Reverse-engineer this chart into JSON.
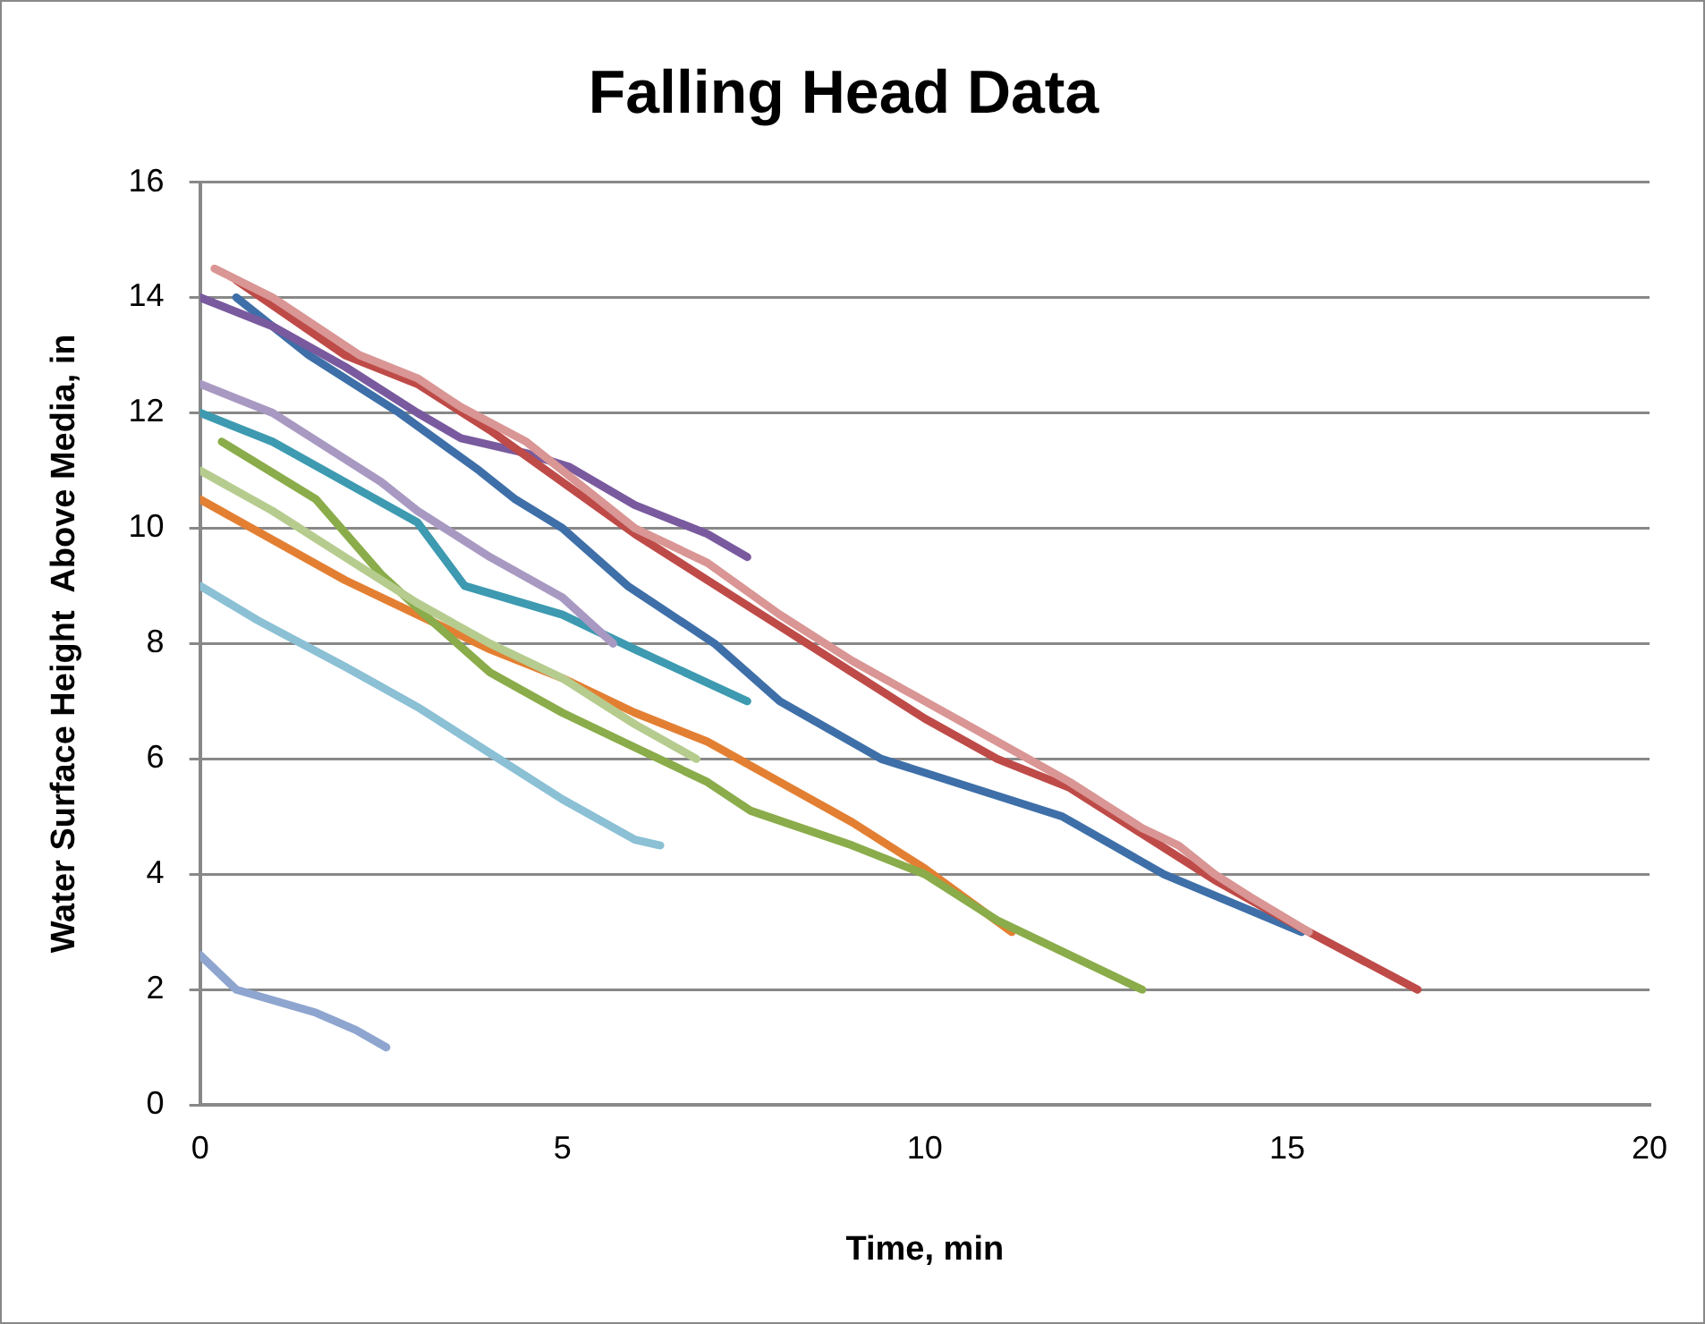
{
  "chart_data": {
    "type": "line",
    "title": "Falling Head Data",
    "xlabel": "Time, min",
    "ylabel": "Water Surface Height  Above Media, in",
    "xlim": [
      0,
      20
    ],
    "xticks": [
      0,
      5,
      10,
      15,
      20
    ],
    "ylim": [
      0,
      16
    ],
    "yticks": [
      0,
      2,
      4,
      6,
      8,
      10,
      12,
      14,
      16
    ],
    "grid": "y",
    "legend": false,
    "marker": "none",
    "series": [
      {
        "color": "#d99694",
        "x": [
          0.2,
          1,
          1.6,
          2.2,
          3,
          3.6,
          4.5,
          5,
          6,
          7,
          8,
          9,
          10,
          11,
          12,
          12.5,
          13,
          13.5,
          14,
          14.5,
          15.3
        ],
        "values": [
          14.5,
          14,
          13.5,
          13,
          12.6,
          12.1,
          11.5,
          11,
          10,
          9.4,
          8.5,
          7.7,
          7,
          6.3,
          5.6,
          5.2,
          4.8,
          4.5,
          4,
          3.6,
          3
        ]
      },
      {
        "color": "#be4b48",
        "x": [
          0.5,
          2,
          3,
          4,
          5,
          6,
          7,
          8,
          9,
          10,
          11,
          12,
          13,
          14,
          15,
          16.8
        ],
        "values": [
          14.3,
          13,
          12.5,
          11.7,
          10.8,
          9.9,
          9.1,
          8.3,
          7.5,
          6.7,
          6,
          5.5,
          4.7,
          3.9,
          3.2,
          2
        ]
      },
      {
        "color": "#7a5a9e",
        "x": [
          0,
          1,
          2,
          3,
          3.6,
          4.5,
          5.1,
          6,
          7,
          7.55
        ],
        "values": [
          14,
          13.5,
          12.8,
          12,
          11.56,
          11.3,
          11.06,
          10.4,
          9.9,
          9.5
        ]
      },
      {
        "color": "#3e6fa8",
        "x": [
          0.5,
          1.5,
          2.75,
          3.85,
          4.35,
          5,
          5.9,
          6.5,
          7.1,
          8,
          9.4,
          11.9,
          13.3,
          15.2
        ],
        "values": [
          14,
          13,
          12,
          11,
          10.5,
          10,
          9,
          8.5,
          8,
          7,
          6,
          5,
          4,
          3
        ]
      },
      {
        "color": "#a899c2",
        "x": [
          0,
          1,
          1.5,
          2.5,
          3,
          4,
          5,
          5.7
        ],
        "values": [
          12.5,
          12,
          11.6,
          10.8,
          10.3,
          9.5,
          8.8,
          8
        ]
      },
      {
        "color": "#3d9ab0",
        "x": [
          0,
          1,
          2,
          3,
          3.65,
          5,
          6,
          7.55
        ],
        "values": [
          12,
          11.5,
          10.8,
          10.1,
          9,
          8.5,
          7.9,
          7
        ]
      },
      {
        "color": "#b6cc8f",
        "x": [
          0,
          1,
          2,
          3,
          4,
          5,
          5.5,
          6,
          6.85
        ],
        "values": [
          11,
          10.3,
          9.5,
          8.7,
          8,
          7.4,
          7,
          6.6,
          6
        ]
      },
      {
        "color": "#8aac4a",
        "x": [
          0.3,
          1.6,
          2.5,
          3.1,
          4,
          5,
          6,
          7,
          7.6,
          9,
          10,
          11,
          13
        ],
        "values": [
          11.5,
          10.5,
          9.2,
          8.5,
          7.5,
          6.8,
          6.2,
          5.6,
          5.1,
          4.5,
          4,
          3.2,
          2
        ]
      },
      {
        "color": "#e37f32",
        "x": [
          0,
          1,
          2,
          3,
          4,
          5,
          6,
          7,
          8,
          9,
          10,
          11.2
        ],
        "values": [
          10.5,
          9.8,
          9.1,
          8.5,
          7.9,
          7.4,
          6.8,
          6.3,
          5.6,
          4.9,
          4.1,
          3
        ]
      },
      {
        "color": "#8bc0d5",
        "x": [
          0,
          0.8,
          2,
          3,
          4,
          5,
          6,
          6.35
        ],
        "values": [
          9,
          8.4,
          7.6,
          6.9,
          6.1,
          5.3,
          4.6,
          4.5
        ]
      },
      {
        "color": "#8ea5cf",
        "x": [
          0,
          0.5,
          1.6,
          2.15,
          2.57
        ],
        "values": [
          2.6,
          2,
          1.6,
          1.3,
          1
        ]
      }
    ]
  }
}
